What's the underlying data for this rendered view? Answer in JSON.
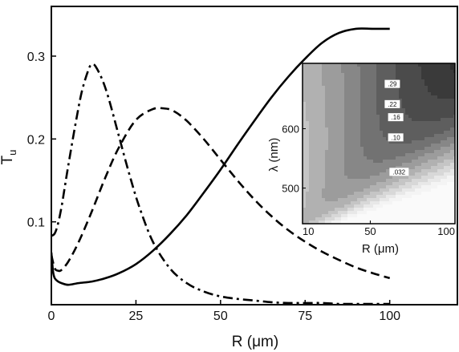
{
  "chart_data": [
    {
      "type": "line",
      "xlabel": "R (μm)",
      "ylabel": "T",
      "ylabel_subscript": "u",
      "xlim": [
        0,
        120
      ],
      "ylim": [
        0,
        0.36
      ],
      "xticks": [
        0,
        25,
        50,
        75,
        100
      ],
      "yticks": [
        0.1,
        0.2,
        0.3
      ],
      "xtick_labels": [
        "0",
        "25",
        "50",
        "75",
        "100"
      ],
      "ytick_labels": [
        "0.1",
        "0.2",
        "0.3"
      ],
      "series": [
        {
          "style": "solid",
          "x": [
            0,
            0.5,
            1,
            2,
            3,
            5,
            8,
            12,
            16,
            20,
            25,
            30,
            35,
            40,
            45,
            50,
            55,
            60,
            65,
            70,
            75,
            80,
            85,
            90,
            95,
            100
          ],
          "y": [
            0.063,
            0.04,
            0.032,
            0.028,
            0.026,
            0.024,
            0.026,
            0.028,
            0.032,
            0.038,
            0.049,
            0.065,
            0.085,
            0.108,
            0.135,
            0.163,
            0.193,
            0.222,
            0.25,
            0.275,
            0.297,
            0.316,
            0.328,
            0.333,
            0.333,
            0.333
          ]
        },
        {
          "style": "dashed",
          "x": [
            0,
            1,
            2,
            3,
            5,
            8,
            12,
            16,
            20,
            25,
            30,
            33,
            36,
            40,
            45,
            50,
            55,
            60,
            65,
            70,
            75,
            80,
            85,
            90,
            95,
            100
          ],
          "y": [
            0.06,
            0.044,
            0.041,
            0.042,
            0.052,
            0.075,
            0.113,
            0.154,
            0.19,
            0.223,
            0.236,
            0.237,
            0.234,
            0.222,
            0.2,
            0.175,
            0.15,
            0.127,
            0.107,
            0.09,
            0.076,
            0.064,
            0.054,
            0.045,
            0.038,
            0.032
          ]
        },
        {
          "style": "dash-dot",
          "x": [
            0,
            1,
            2,
            3,
            4,
            5,
            7,
            9,
            11,
            12,
            13,
            15,
            17,
            20,
            23,
            26,
            30,
            35,
            40,
            45,
            50,
            55,
            60,
            65,
            70,
            75,
            80,
            85,
            90,
            95,
            100
          ],
          "y": [
            0.083,
            0.086,
            0.098,
            0.118,
            0.143,
            0.168,
            0.215,
            0.257,
            0.284,
            0.29,
            0.288,
            0.272,
            0.248,
            0.203,
            0.158,
            0.118,
            0.076,
            0.044,
            0.026,
            0.016,
            0.01,
            0.007,
            0.005,
            0.003,
            0.002,
            0.002,
            0.002,
            0.001,
            0.001,
            0.001,
            0.001
          ]
        }
      ]
    },
    {
      "type": "heatmap",
      "subtype": "contour",
      "xlabel": "R (μm)",
      "ylabel": "λ (nm)",
      "xlim": [
        10,
        100
      ],
      "ylim": [
        440,
        710
      ],
      "xticks": [
        10,
        50,
        100
      ],
      "yticks": [
        500,
        600
      ],
      "xtick_labels": [
        "10",
        "50",
        "100"
      ],
      "ytick_labels": [
        "500",
        "600"
      ],
      "contour_labels": [
        {
          "text": ".29",
          "R": 63,
          "lambda": 674
        },
        {
          "text": ".22",
          "R": 63,
          "lambda": 640
        },
        {
          "text": ".16",
          "R": 65,
          "lambda": 618
        },
        {
          "text": ".10",
          "R": 65,
          "lambda": 584
        },
        {
          "text": ".032",
          "R": 67,
          "lambda": 526
        }
      ],
      "colors": {
        "bands": [
          "#2b2b2b",
          "#3a3a3a",
          "#4b4b4b",
          "#5e5e5e",
          "#727272",
          "#878787",
          "#9c9c9c",
          "#b1b1b1",
          "#c5c5c5",
          "#d8d8d8",
          "#e8e8e8",
          "#f4f4f4"
        ]
      }
    }
  ]
}
